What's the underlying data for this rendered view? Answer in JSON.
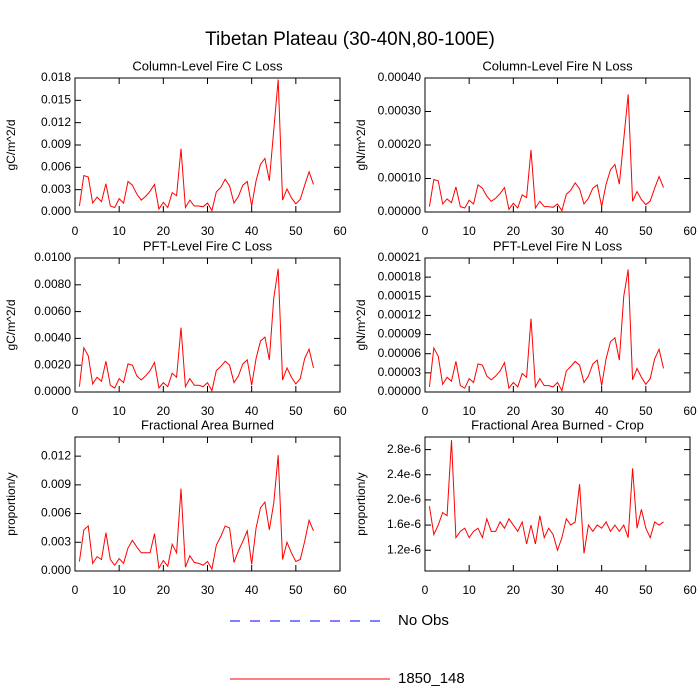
{
  "title": "Tibetan Plateau (30-40N,80-100E)",
  "legend": [
    {
      "name": "No Obs",
      "color": "#0000ff",
      "dash": true
    },
    {
      "name": "1850_148",
      "color": "#ff0000",
      "dash": false
    }
  ],
  "chart_data": [
    {
      "type": "line",
      "title": "Column-Level Fire C Loss",
      "ylabel": "gC/m^2/d",
      "x": [
        1,
        2,
        3,
        4,
        5,
        6,
        7,
        8,
        9,
        10,
        11,
        12,
        13,
        14,
        15,
        16,
        17,
        18,
        19,
        20,
        21,
        22,
        23,
        24,
        25,
        26,
        27,
        28,
        29,
        30,
        31,
        32,
        33,
        34,
        35,
        36,
        37,
        38,
        39,
        40,
        41,
        42,
        43,
        44,
        45,
        46,
        47,
        48,
        49,
        50,
        51,
        52,
        53,
        54
      ],
      "series": [
        {
          "name": "1850_148",
          "color": "#ff0000",
          "values": [
            0.0008,
            0.0049,
            0.0047,
            0.0012,
            0.002,
            0.0014,
            0.0038,
            0.0008,
            0.0006,
            0.0018,
            0.0012,
            0.0041,
            0.0036,
            0.0024,
            0.0016,
            0.0021,
            0.0028,
            0.0037,
            0.0004,
            0.0013,
            0.0006,
            0.0026,
            0.0022,
            0.0085,
            0.0006,
            0.0016,
            0.0008,
            0.0008,
            0.0007,
            0.0012,
            0.0002,
            0.0027,
            0.0033,
            0.0044,
            0.0035,
            0.0012,
            0.0021,
            0.0036,
            0.0041,
            0.0008,
            0.0042,
            0.0064,
            0.0072,
            0.0042,
            0.011,
            0.0178,
            0.0016,
            0.0031,
            0.0019,
            0.0011,
            0.0017,
            0.0036,
            0.0054,
            0.0037
          ]
        }
      ],
      "xlim": [
        0,
        60
      ],
      "xticks": [
        0,
        10,
        20,
        30,
        40,
        50,
        60
      ],
      "ylim": [
        0,
        0.018
      ],
      "yticks": [
        {
          "value": 0,
          "label": "0.000"
        },
        0.003,
        0.006,
        0.009,
        0.012,
        0.015,
        0.018
      ]
    },
    {
      "type": "line",
      "title": "Column-Level Fire N Loss",
      "ylabel": "gN/m^2/d",
      "x": [
        1,
        2,
        3,
        4,
        5,
        6,
        7,
        8,
        9,
        10,
        11,
        12,
        13,
        14,
        15,
        16,
        17,
        18,
        19,
        20,
        21,
        22,
        23,
        24,
        25,
        26,
        27,
        28,
        29,
        30,
        31,
        32,
        33,
        34,
        35,
        36,
        37,
        38,
        39,
        40,
        41,
        42,
        43,
        44,
        45,
        46,
        47,
        48,
        49,
        50,
        51,
        52,
        53,
        54
      ],
      "series": [
        {
          "name": "1850_148",
          "color": "#ff0000",
          "values": [
            1.6e-05,
            9.7e-05,
            9.3e-05,
            2.4e-05,
            3.9e-05,
            2.8e-05,
            7.5e-05,
            1.6e-05,
            1.2e-05,
            3.5e-05,
            2.4e-05,
            8.1e-05,
            7.1e-05,
            4.7e-05,
            3.2e-05,
            4.1e-05,
            5.5e-05,
            7.3e-05,
            8e-06,
            2.6e-05,
            1.2e-05,
            5.1e-05,
            4.3e-05,
            0.000185,
            1.2e-05,
            3.2e-05,
            1.6e-05,
            1.6e-05,
            1.4e-05,
            2.4e-05,
            4e-06,
            5.3e-05,
            6.5e-05,
            8.7e-05,
            6.9e-05,
            2.4e-05,
            4.1e-05,
            7.1e-05,
            8.1e-05,
            1.6e-05,
            8.3e-05,
            0.000126,
            0.000142,
            8.3e-05,
            0.000217,
            0.000351,
            3.2e-05,
            6.1e-05,
            3.7e-05,
            2.2e-05,
            3.3e-05,
            7.1e-05,
            0.000106,
            7.3e-05
          ]
        }
      ],
      "xlim": [
        0,
        60
      ],
      "xticks": [
        0,
        10,
        20,
        30,
        40,
        50,
        60
      ],
      "ylim": [
        0,
        0.0004
      ],
      "yticks": [
        {
          "value": 0,
          "label": "0.00000"
        },
        {
          "value": 0.0001,
          "label": "0.00010"
        },
        {
          "value": 0.0002,
          "label": "0.00020"
        },
        {
          "value": 0.0003,
          "label": "0.00030"
        },
        {
          "value": 0.0004,
          "label": "0.00040"
        }
      ]
    },
    {
      "type": "line",
      "title": "PFT-Level Fire C Loss",
      "ylabel": "gC/m^2/d",
      "x": [
        1,
        2,
        3,
        4,
        5,
        6,
        7,
        8,
        9,
        10,
        11,
        12,
        13,
        14,
        15,
        16,
        17,
        18,
        19,
        20,
        21,
        22,
        23,
        24,
        25,
        26,
        27,
        28,
        29,
        30,
        31,
        32,
        33,
        34,
        35,
        36,
        37,
        38,
        39,
        40,
        41,
        42,
        43,
        44,
        45,
        46,
        47,
        48,
        49,
        50,
        51,
        52,
        53,
        54
      ],
      "series": [
        {
          "name": "1850_148",
          "color": "#ff0000",
          "values": [
            0.0004,
            0.0033,
            0.0027,
            0.0006,
            0.0011,
            0.0008,
            0.0023,
            0.0005,
            0.0003,
            0.001,
            0.0007,
            0.0021,
            0.002,
            0.0012,
            0.0009,
            0.0012,
            0.0016,
            0.0022,
            0.0003,
            0.0007,
            0.0004,
            0.0014,
            0.0011,
            0.0048,
            0.0004,
            0.001,
            0.0005,
            0.0005,
            0.0004,
            0.0007,
            0.0001,
            0.0016,
            0.0019,
            0.0023,
            0.002,
            0.0007,
            0.0012,
            0.0021,
            0.0024,
            0.0005,
            0.0025,
            0.0038,
            0.0041,
            0.0024,
            0.007,
            0.0092,
            0.0009,
            0.0018,
            0.0011,
            0.0006,
            0.001,
            0.0025,
            0.0032,
            0.0018
          ]
        }
      ],
      "xlim": [
        0,
        60
      ],
      "xticks": [
        0,
        10,
        20,
        30,
        40,
        50,
        60
      ],
      "ylim": [
        0,
        0.01
      ],
      "yticks": [
        {
          "value": 0,
          "label": "0.0000"
        },
        {
          "value": 0.002,
          "label": "0.0020"
        },
        {
          "value": 0.004,
          "label": "0.0040"
        },
        {
          "value": 0.006,
          "label": "0.0060"
        },
        {
          "value": 0.008,
          "label": "0.0080"
        },
        {
          "value": 0.01,
          "label": "0.0100"
        }
      ]
    },
    {
      "type": "line",
      "title": "PFT-Level Fire N Loss",
      "ylabel": "gN/m^2/d",
      "x": [
        1,
        2,
        3,
        4,
        5,
        6,
        7,
        8,
        9,
        10,
        11,
        12,
        13,
        14,
        15,
        16,
        17,
        18,
        19,
        20,
        21,
        22,
        23,
        24,
        25,
        26,
        27,
        28,
        29,
        30,
        31,
        32,
        33,
        34,
        35,
        36,
        37,
        38,
        39,
        40,
        41,
        42,
        43,
        44,
        45,
        46,
        47,
        48,
        49,
        50,
        51,
        52,
        53,
        54
      ],
      "series": [
        {
          "name": "1850_148",
          "color": "#ff0000",
          "values": [
            8e-06,
            6.9e-05,
            5.6e-05,
            1.2e-05,
            2.3e-05,
            1.7e-05,
            4.8e-05,
            1e-05,
            6e-06,
            2.1e-05,
            1.5e-05,
            4.4e-05,
            4.2e-05,
            2.5e-05,
            1.9e-05,
            2.5e-05,
            3.3e-05,
            4.6e-05,
            6e-06,
            1.5e-05,
            8e-06,
            2.9e-05,
            2.3e-05,
            0.000115,
            8e-06,
            2.1e-05,
            1e-05,
            1e-05,
            8e-06,
            1.5e-05,
            2e-06,
            3.3e-05,
            4e-05,
            4.8e-05,
            4.2e-05,
            1.5e-05,
            2.5e-05,
            4.4e-05,
            5e-05,
            1e-05,
            5.2e-05,
            7.9e-05,
            8.5e-05,
            5e-05,
            0.00015,
            0.000192,
            1.9e-05,
            3.7e-05,
            2.3e-05,
            1.2e-05,
            2.1e-05,
            5.2e-05,
            6.7e-05,
            3.7e-05
          ]
        }
      ],
      "xlim": [
        0,
        60
      ],
      "xticks": [
        0,
        10,
        20,
        30,
        40,
        50,
        60
      ],
      "ylim": [
        0,
        0.00021
      ],
      "yticks": [
        {
          "value": 0,
          "label": "0.00000"
        },
        3e-05,
        6e-05,
        9e-05,
        0.00012,
        0.00015,
        0.00018,
        0.00021
      ]
    },
    {
      "type": "line",
      "title": "Fractional Area Burned",
      "ylabel": "proportion/y",
      "x": [
        1,
        2,
        3,
        4,
        5,
        6,
        7,
        8,
        9,
        10,
        11,
        12,
        13,
        14,
        15,
        16,
        17,
        18,
        19,
        20,
        21,
        22,
        23,
        24,
        25,
        26,
        27,
        28,
        29,
        30,
        31,
        32,
        33,
        34,
        35,
        36,
        37,
        38,
        39,
        40,
        41,
        42,
        43,
        44,
        45,
        46,
        47,
        48,
        49,
        50,
        51,
        52,
        53,
        54
      ],
      "series": [
        {
          "name": "1850_148",
          "color": "#ff0000",
          "values": [
            0.001,
            0.0043,
            0.0047,
            0.0008,
            0.0015,
            0.0012,
            0.004,
            0.0012,
            0.0006,
            0.0013,
            0.0008,
            0.0024,
            0.0032,
            0.0025,
            0.0019,
            0.0019,
            0.0019,
            0.0039,
            0.0003,
            0.0011,
            0.0005,
            0.0028,
            0.0019,
            0.0086,
            0.0004,
            0.0016,
            0.0009,
            0.0008,
            0.0006,
            0.001,
            0.0002,
            0.0027,
            0.0036,
            0.0047,
            0.0045,
            0.0009,
            0.0021,
            0.0031,
            0.0042,
            0.0007,
            0.0045,
            0.0066,
            0.0072,
            0.0043,
            0.0071,
            0.0121,
            0.0012,
            0.003,
            0.0019,
            0.001,
            0.0012,
            0.0031,
            0.0053,
            0.0042
          ]
        }
      ],
      "xlim": [
        0,
        60
      ],
      "xticks": [
        0,
        10,
        20,
        30,
        40,
        50,
        60
      ],
      "ylim": [
        0,
        0.014
      ],
      "yticks": [
        {
          "value": 0,
          "label": "0.000"
        },
        0.003,
        0.006,
        0.009,
        0.012
      ]
    },
    {
      "type": "line",
      "title": "Fractional Area Burned - Crop",
      "ylabel": "proportion/y",
      "x": [
        1,
        2,
        3,
        4,
        5,
        6,
        7,
        8,
        9,
        10,
        11,
        12,
        13,
        14,
        15,
        16,
        17,
        18,
        19,
        20,
        21,
        22,
        23,
        24,
        25,
        26,
        27,
        28,
        29,
        30,
        31,
        32,
        33,
        34,
        35,
        36,
        37,
        38,
        39,
        40,
        41,
        42,
        43,
        44,
        45,
        46,
        47,
        48,
        49,
        50,
        51,
        52,
        53,
        54
      ],
      "series": [
        {
          "name": "1850_148",
          "color": "#ff0000",
          "values": [
            1.9e-06,
            1.45e-06,
            1.6e-06,
            1.8e-06,
            1.75e-06,
            2.95e-06,
            1.4e-06,
            1.5e-06,
            1.55e-06,
            1.4e-06,
            1.5e-06,
            1.55e-06,
            1.4e-06,
            1.7e-06,
            1.5e-06,
            1.5e-06,
            1.65e-06,
            1.55e-06,
            1.7e-06,
            1.6e-06,
            1.5e-06,
            1.65e-06,
            1.3e-06,
            1.6e-06,
            1.3e-06,
            1.75e-06,
            1.4e-06,
            1.55e-06,
            1.45e-06,
            1.2e-06,
            1.4e-06,
            1.7e-06,
            1.6e-06,
            1.65e-06,
            2.25e-06,
            1.15e-06,
            1.6e-06,
            1.5e-06,
            1.6e-06,
            1.55e-06,
            1.65e-06,
            1.5e-06,
            1.6e-06,
            1.5e-06,
            1.6e-06,
            1.4e-06,
            2.5e-06,
            1.55e-06,
            1.85e-06,
            1.55e-06,
            1.4e-06,
            1.65e-06,
            1.6e-06,
            1.65e-06
          ]
        }
      ],
      "xlim": [
        0,
        60
      ],
      "xticks": [
        0,
        10,
        20,
        30,
        40,
        50,
        60
      ],
      "ylim": [
        8.7e-07,
        3e-06
      ],
      "yticks": [
        {
          "value": 1.2e-06,
          "label": "1.2e-6"
        },
        {
          "value": 1.6e-06,
          "label": "1.6e-6"
        },
        {
          "value": 2e-06,
          "label": "2.0e-6"
        },
        {
          "value": 2.4e-06,
          "label": "2.4e-6"
        },
        {
          "value": 2.8e-06,
          "label": "2.8e-6"
        }
      ]
    }
  ]
}
